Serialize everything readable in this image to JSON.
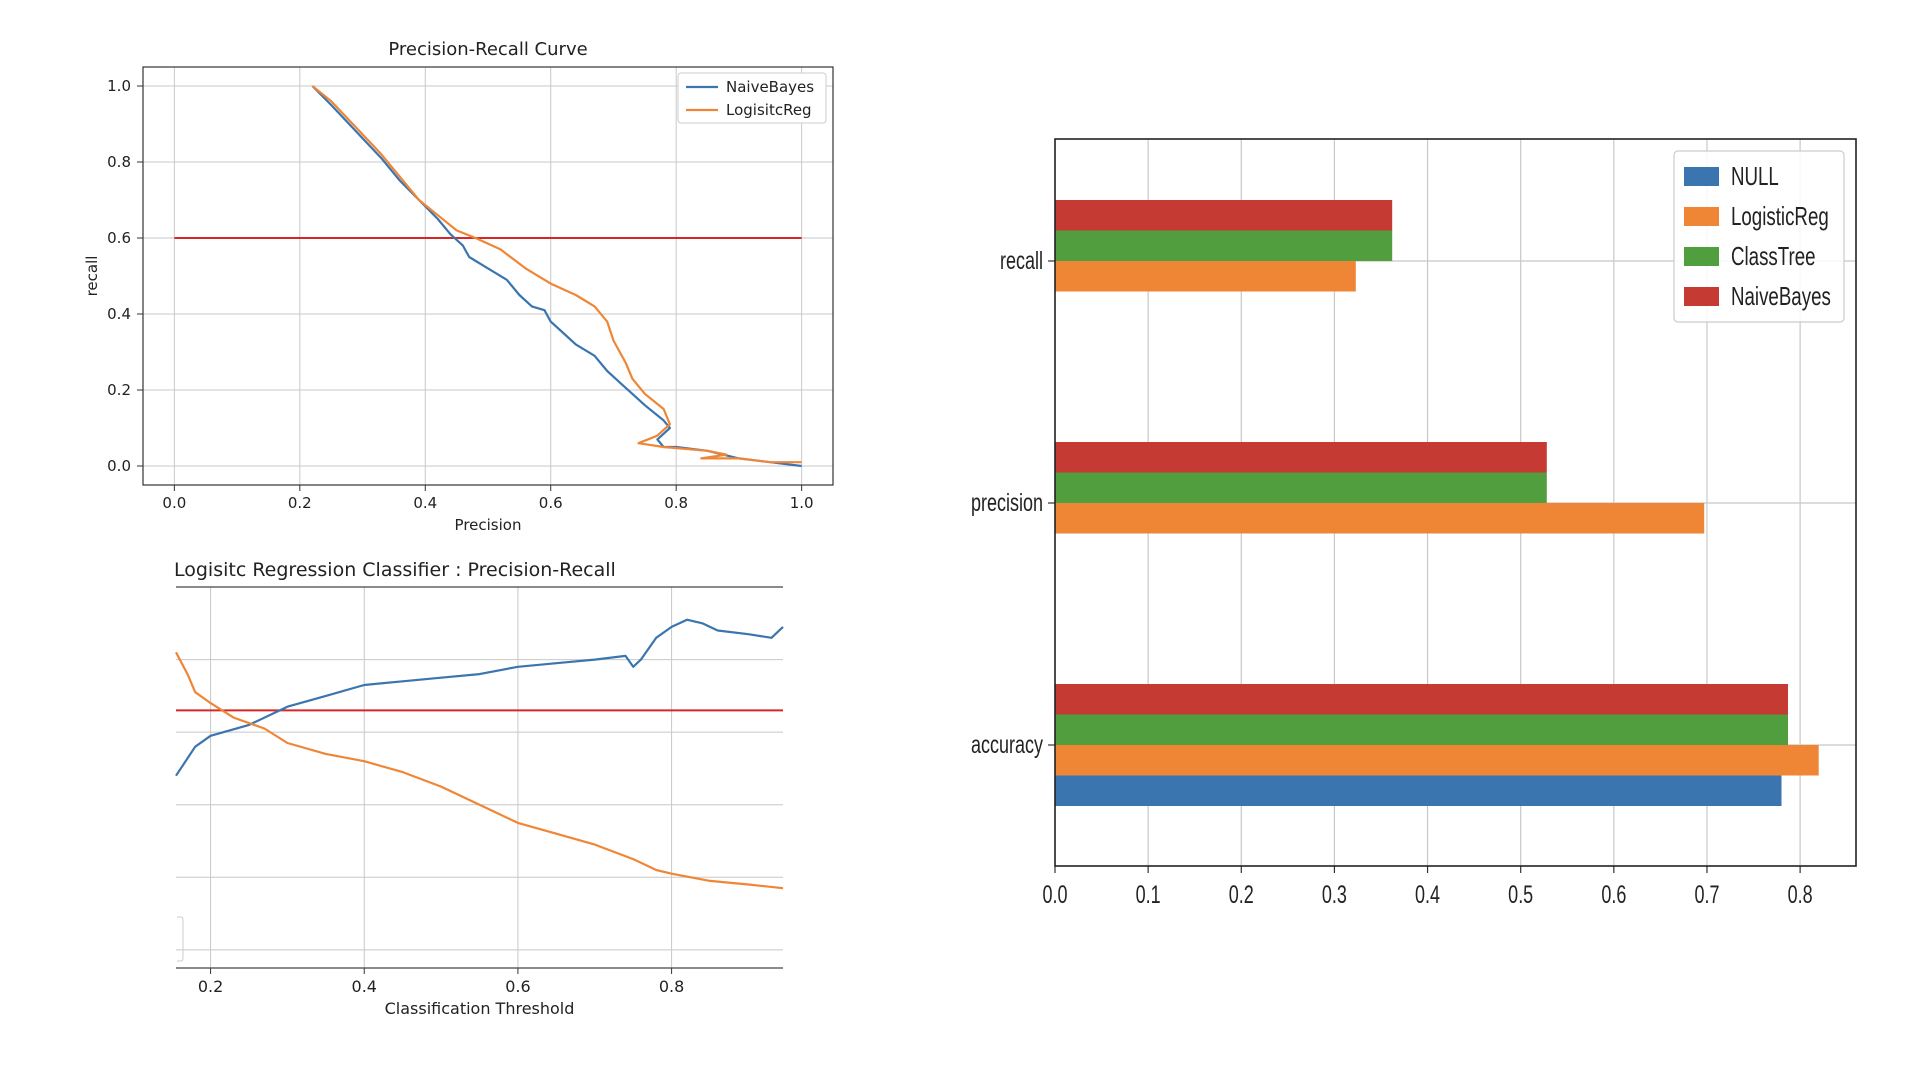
{
  "chart_data": [
    {
      "type": "line",
      "title": "Precision-Recall Curve",
      "xlabel": "Precision",
      "ylabel": "recall",
      "xlim": [
        -0.05,
        1.05
      ],
      "ylim": [
        -0.05,
        1.05
      ],
      "xticks": [
        "0.0",
        "0.2",
        "0.4",
        "0.6",
        "0.8",
        "1.0"
      ],
      "yticks": [
        "0.0",
        "0.2",
        "0.4",
        "0.6",
        "0.8",
        "1.0"
      ],
      "grid": true,
      "legend": "top-right",
      "series": [
        {
          "name": "NaiveBayes",
          "color": "#3b75af",
          "x": [
            0.22,
            0.25,
            0.29,
            0.33,
            0.36,
            0.39,
            0.42,
            0.44,
            0.46,
            0.47,
            0.5,
            0.53,
            0.55,
            0.57,
            0.59,
            0.6,
            0.62,
            0.64,
            0.67,
            0.69,
            0.71,
            0.73,
            0.75,
            0.78,
            0.79,
            0.77,
            0.78,
            0.8,
            0.85,
            0.9,
            0.95,
            1.0
          ],
          "y": [
            1.0,
            0.95,
            0.88,
            0.81,
            0.75,
            0.7,
            0.65,
            0.61,
            0.58,
            0.55,
            0.52,
            0.49,
            0.45,
            0.42,
            0.41,
            0.38,
            0.35,
            0.32,
            0.29,
            0.25,
            0.22,
            0.19,
            0.16,
            0.12,
            0.1,
            0.07,
            0.05,
            0.05,
            0.04,
            0.02,
            0.01,
            0.0
          ]
        },
        {
          "name": "LogisitcReg",
          "color": "#ef8636",
          "x": [
            0.22,
            0.25,
            0.29,
            0.33,
            0.36,
            0.39,
            0.42,
            0.45,
            0.48,
            0.52,
            0.56,
            0.6,
            0.64,
            0.67,
            0.69,
            0.7,
            0.72,
            0.73,
            0.75,
            0.78,
            0.79,
            0.77,
            0.74,
            0.78,
            0.85,
            0.88,
            0.84,
            0.9,
            0.95,
            1.0
          ],
          "y": [
            1.0,
            0.96,
            0.89,
            0.82,
            0.76,
            0.7,
            0.66,
            0.62,
            0.6,
            0.57,
            0.52,
            0.48,
            0.45,
            0.42,
            0.38,
            0.33,
            0.27,
            0.23,
            0.19,
            0.15,
            0.11,
            0.08,
            0.06,
            0.05,
            0.04,
            0.03,
            0.02,
            0.02,
            0.01,
            0.01
          ]
        }
      ],
      "reference_line": {
        "y": 0.6,
        "x_range": [
          0.0,
          1.0
        ],
        "color": "#d62728"
      }
    },
    {
      "type": "line",
      "title": "Logisitc Regression Classifier : Precision-Recall",
      "xlabel": "Classification Threshold",
      "xlim": [
        0.155,
        0.945
      ],
      "ylim": [
        -0.05,
        1.0
      ],
      "xticks": [
        "0.2",
        "0.4",
        "0.6",
        "0.8"
      ],
      "grid": true,
      "series": [
        {
          "color": "#3b75af",
          "x": [
            0.155,
            0.18,
            0.2,
            0.25,
            0.3,
            0.35,
            0.4,
            0.45,
            0.5,
            0.55,
            0.6,
            0.65,
            0.7,
            0.74,
            0.75,
            0.76,
            0.78,
            0.8,
            0.82,
            0.84,
            0.86,
            0.9,
            0.93,
            0.945
          ],
          "y": [
            0.48,
            0.56,
            0.59,
            0.62,
            0.67,
            0.7,
            0.73,
            0.74,
            0.75,
            0.76,
            0.78,
            0.79,
            0.8,
            0.81,
            0.78,
            0.8,
            0.86,
            0.89,
            0.91,
            0.9,
            0.88,
            0.87,
            0.86,
            0.89
          ]
        },
        {
          "color": "#ef8636",
          "x": [
            0.155,
            0.17,
            0.18,
            0.2,
            0.23,
            0.27,
            0.3,
            0.35,
            0.4,
            0.45,
            0.5,
            0.55,
            0.6,
            0.65,
            0.7,
            0.75,
            0.78,
            0.8,
            0.85,
            0.9,
            0.945
          ],
          "y": [
            0.82,
            0.76,
            0.71,
            0.68,
            0.64,
            0.61,
            0.57,
            0.54,
            0.52,
            0.49,
            0.45,
            0.4,
            0.35,
            0.32,
            0.29,
            0.25,
            0.22,
            0.21,
            0.19,
            0.18,
            0.17
          ]
        }
      ],
      "reference_line": {
        "y": 0.66,
        "color": "#d62728"
      }
    },
    {
      "type": "bar",
      "orientation": "horizontal",
      "categories": [
        "accuracy",
        "precision",
        "recall"
      ],
      "xlim": [
        0.0,
        0.86
      ],
      "xticks": [
        "0.0",
        "0.1",
        "0.2",
        "0.3",
        "0.4",
        "0.5",
        "0.6",
        "0.7",
        "0.8"
      ],
      "grid": true,
      "legend": "top-right",
      "series": [
        {
          "name": "NULL",
          "color": "#3b75af",
          "values": [
            0.78,
            0.0,
            0.0
          ]
        },
        {
          "name": "LogisticReg",
          "color": "#ef8636",
          "values": [
            0.82,
            0.697,
            0.323
          ]
        },
        {
          "name": "ClassTree",
          "color": "#519e3e",
          "values": [
            0.787,
            0.528,
            0.362
          ]
        },
        {
          "name": "NaiveBayes",
          "color": "#c53a32",
          "values": [
            0.787,
            0.528,
            0.362
          ]
        }
      ]
    }
  ]
}
